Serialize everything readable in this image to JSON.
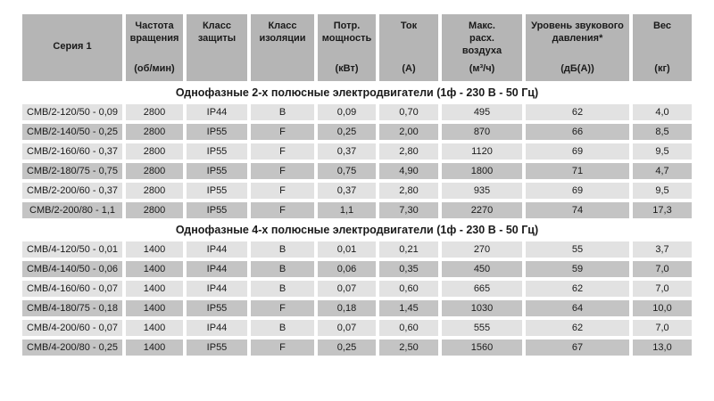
{
  "colors": {
    "header_bg": "#b5b5b5",
    "row_light": "#e2e2e2",
    "row_dark": "#c4c4c4",
    "text": "#1a1a1a",
    "page_bg": "#ffffff"
  },
  "table": {
    "columns": [
      {
        "id": "series",
        "label": "Серия 1",
        "unit": ""
      },
      {
        "id": "speed",
        "label": "Частота вращения",
        "unit": "(об/мин)"
      },
      {
        "id": "protection",
        "label": "Класс защиты",
        "unit": ""
      },
      {
        "id": "insulation",
        "label": "Класс изоляции",
        "unit": ""
      },
      {
        "id": "power",
        "label": "Потр. мощность",
        "unit": "(кВт)"
      },
      {
        "id": "current",
        "label": "Ток",
        "unit": "(А)"
      },
      {
        "id": "airflow",
        "label": "Макс. расх. воздуха",
        "unit": "(м³/ч)"
      },
      {
        "id": "sound",
        "label": "Уровень звукового давления*",
        "unit": "(дБ(А))"
      },
      {
        "id": "weight",
        "label": "Вес",
        "unit": "(кг)"
      }
    ],
    "sections": [
      {
        "title": "Однофазные 2-х полюсные электродвигатели (1ф - 230 В - 50 Гц)",
        "rows": [
          [
            "CMB/2-120/50 - 0,09",
            "2800",
            "IP44",
            "B",
            "0,09",
            "0,70",
            "495",
            "62",
            "4,0"
          ],
          [
            "CMB/2-140/50 - 0,25",
            "2800",
            "IP55",
            "F",
            "0,25",
            "2,00",
            "870",
            "66",
            "8,5"
          ],
          [
            "CMB/2-160/60 - 0,37",
            "2800",
            "IP55",
            "F",
            "0,37",
            "2,80",
            "1120",
            "69",
            "9,5"
          ],
          [
            "CMB/2-180/75 - 0,75",
            "2800",
            "IP55",
            "F",
            "0,75",
            "4,90",
            "1800",
            "71",
            "4,7"
          ],
          [
            "CMB/2-200/60 - 0,37",
            "2800",
            "IP55",
            "F",
            "0,37",
            "2,80",
            "935",
            "69",
            "9,5"
          ],
          [
            "CMB/2-200/80 - 1,1",
            "2800",
            "IP55",
            "F",
            "1,1",
            "7,30",
            "2270",
            "74",
            "17,3"
          ]
        ]
      },
      {
        "title": "Однофазные 4-х полюсные электродвигатели (1ф - 230 В - 50 Гц)",
        "rows": [
          [
            "CMB/4-120/50 - 0,01",
            "1400",
            "IP44",
            "B",
            "0,01",
            "0,21",
            "270",
            "55",
            "3,7"
          ],
          [
            "CMB/4-140/50 - 0,06",
            "1400",
            "IP44",
            "B",
            "0,06",
            "0,35",
            "450",
            "59",
            "7,0"
          ],
          [
            "CMB/4-160/60 - 0,07",
            "1400",
            "IP44",
            "B",
            "0,07",
            "0,60",
            "665",
            "62",
            "7,0"
          ],
          [
            "CMB/4-180/75 - 0,18",
            "1400",
            "IP55",
            "F",
            "0,18",
            "1,45",
            "1030",
            "64",
            "10,0"
          ],
          [
            "CMB/4-200/60 - 0,07",
            "1400",
            "IP44",
            "B",
            "0,07",
            "0,60",
            "555",
            "62",
            "7,0"
          ],
          [
            "CMB/4-200/80 - 0,25",
            "1400",
            "IP55",
            "F",
            "0,25",
            "2,50",
            "1560",
            "67",
            "13,0"
          ]
        ]
      }
    ]
  }
}
